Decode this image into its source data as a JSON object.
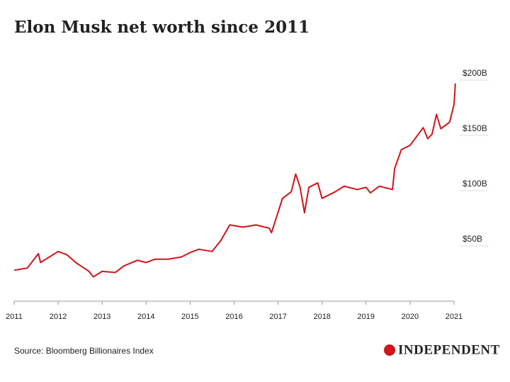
{
  "chart_data": {
    "type": "line",
    "title": "Elon Musk net worth since 2011",
    "x": [
      2011.0,
      2011.3,
      2011.55,
      2011.6,
      2012.0,
      2012.2,
      2012.4,
      2012.7,
      2012.8,
      2013.0,
      2013.3,
      2013.5,
      2013.8,
      2014.0,
      2014.2,
      2014.5,
      2014.8,
      2015.0,
      2015.2,
      2015.5,
      2015.7,
      2015.9,
      2016.2,
      2016.5,
      2016.8,
      2016.85,
      2017.1,
      2017.3,
      2017.4,
      2017.5,
      2017.6,
      2017.7,
      2017.9,
      2018.0,
      2018.3,
      2018.5,
      2018.8,
      2019.0,
      2019.1,
      2019.3,
      2019.6,
      2019.65,
      2019.8,
      2020.0,
      2020.3,
      2020.4,
      2020.5,
      2020.6,
      2020.7,
      2020.9,
      2021.0,
      2021.03
    ],
    "series": [
      {
        "name": "Net worth",
        "color": "#d0141b",
        "values": [
          28,
          30,
          43,
          35,
          45,
          42,
          35,
          27,
          22,
          27,
          26,
          32,
          37,
          35,
          38,
          38,
          40,
          44,
          47,
          45,
          55,
          69,
          67,
          69,
          66,
          62,
          93,
          99,
          115,
          103,
          80,
          103,
          107,
          93,
          99,
          104,
          101,
          103,
          98,
          104,
          101,
          120,
          137,
          141,
          157,
          147,
          151,
          169,
          156,
          162,
          178,
          197
        ]
      }
    ],
    "xlim": [
      2011,
      2021
    ],
    "xticks": [
      2011,
      2012,
      2013,
      2014,
      2015,
      2016,
      2017,
      2018,
      2019,
      2020,
      2021
    ],
    "ylim": [
      0,
      200
    ],
    "yticks": [
      {
        "value": 50,
        "label": "$50B"
      },
      {
        "value": 100,
        "label": "$100B"
      },
      {
        "value": 150,
        "label": "$150B"
      },
      {
        "value": 200,
        "label": "$200B"
      }
    ],
    "grid": true
  },
  "footer": {
    "source": "Source: Bloomberg Billionaires Index",
    "logo": "INDEPENDENT"
  }
}
